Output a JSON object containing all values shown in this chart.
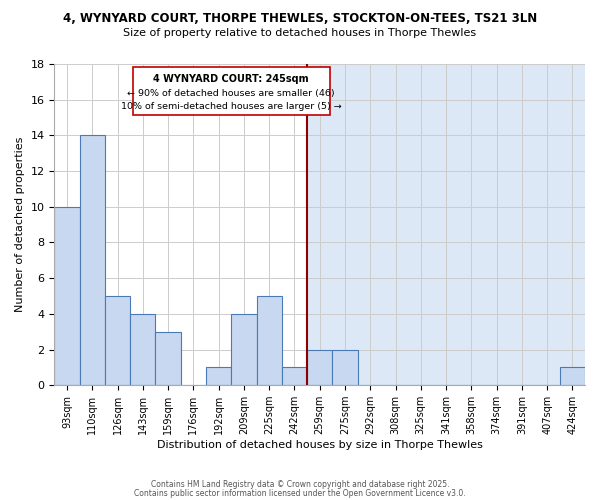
{
  "title_line1": "4, WYNYARD COURT, THORPE THEWLES, STOCKTON-ON-TEES, TS21 3LN",
  "title_line2": "Size of property relative to detached houses in Thorpe Thewles",
  "xlabel": "Distribution of detached houses by size in Thorpe Thewles",
  "ylabel": "Number of detached properties",
  "categories": [
    "93sqm",
    "110sqm",
    "126sqm",
    "143sqm",
    "159sqm",
    "176sqm",
    "192sqm",
    "209sqm",
    "225sqm",
    "242sqm",
    "259sqm",
    "275sqm",
    "292sqm",
    "308sqm",
    "325sqm",
    "341sqm",
    "358sqm",
    "374sqm",
    "391sqm",
    "407sqm",
    "424sqm"
  ],
  "values": [
    10,
    14,
    5,
    4,
    3,
    0,
    1,
    4,
    5,
    1,
    2,
    2,
    0,
    0,
    0,
    0,
    0,
    0,
    0,
    0,
    1
  ],
  "bar_facecolor": "#c8d8f0",
  "bar_edgecolor": "#4a7ab5",
  "annotation_lines": [
    "4 WYNYARD COURT: 245sqm",
    "← 90% of detached houses are smaller (46)",
    "10% of semi-detached houses are larger (5) →"
  ],
  "annotation_box_edgecolor": "#c00000",
  "vline_color": "#8b0000",
  "vline_index": 9.5,
  "ylim": [
    0,
    18
  ],
  "yticks": [
    0,
    2,
    4,
    6,
    8,
    10,
    12,
    14,
    16,
    18
  ],
  "bg_color_right": "#dce8f5",
  "bg_color_left": "#ffffff",
  "grid_color": "#cccccc",
  "footer_line1": "Contains HM Land Registry data © Crown copyright and database right 2025.",
  "footer_line2": "Contains public sector information licensed under the Open Government Licence v3.0."
}
